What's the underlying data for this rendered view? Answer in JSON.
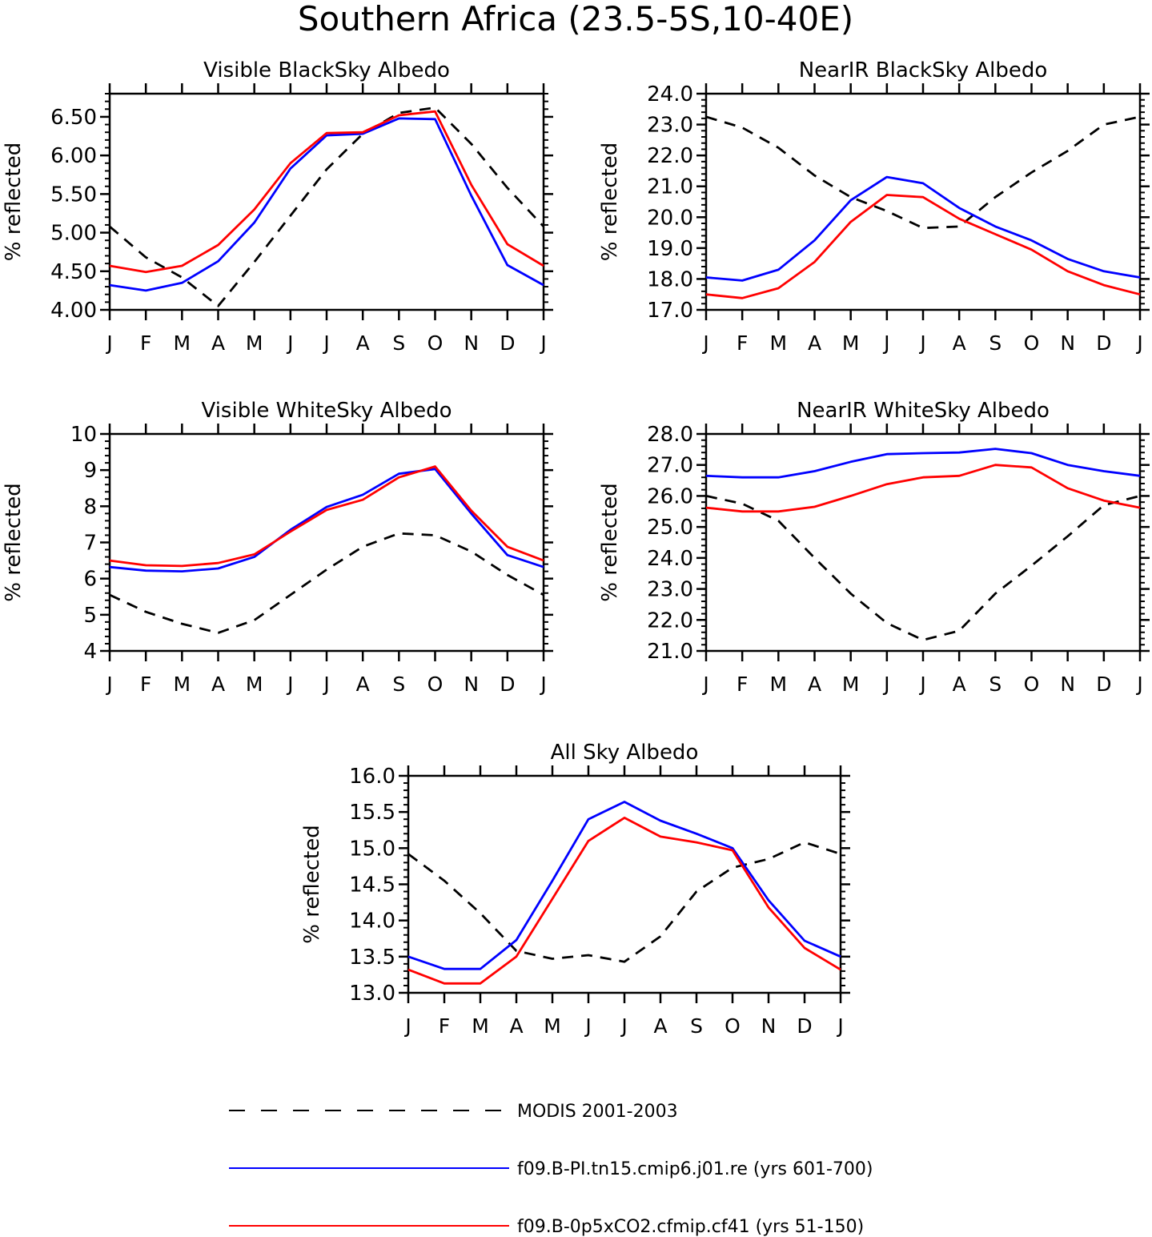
{
  "figure": {
    "title": "Southern Africa (23.5-5S,10-40E)"
  },
  "legend": [
    {
      "label": "MODIS 2001-2003",
      "color": "#000000",
      "style": "dashed"
    },
    {
      "label": "f09.B-PI.tn15.cmip6.j01.re (yrs 601-700)",
      "color": "#0000ff",
      "style": "solid"
    },
    {
      "label": "f09.B-0p5xCO2.cfmip.cf41 (yrs 51-150)",
      "color": "#ff0000",
      "style": "solid"
    }
  ],
  "chart_data": [
    {
      "type": "line",
      "title": "Visible BlackSky Albedo",
      "ylabel": "% reflected",
      "categories": [
        "J",
        "F",
        "M",
        "A",
        "M",
        "J",
        "J",
        "A",
        "S",
        "O",
        "N",
        "D",
        "J"
      ],
      "ylim": [
        4.0,
        6.8
      ],
      "yticks": [
        "4.00",
        "4.50",
        "5.00",
        "5.50",
        "6.00",
        "6.50"
      ],
      "series": [
        {
          "name": "MODIS 2001-2003",
          "color": "#000000",
          "style": "dashed",
          "values": [
            5.08,
            4.68,
            4.42,
            4.05,
            4.62,
            5.22,
            5.82,
            6.28,
            6.55,
            6.62,
            6.15,
            5.58,
            5.08
          ]
        },
        {
          "name": "f09.B-PI.tn15.cmip6.j01.re (yrs 601-700)",
          "color": "#0000ff",
          "style": "solid",
          "values": [
            4.32,
            4.25,
            4.35,
            4.63,
            5.13,
            5.83,
            6.26,
            6.28,
            6.48,
            6.47,
            5.48,
            4.58,
            4.32
          ]
        },
        {
          "name": "f09.B-0p5xCO2.cfmip.cf41 (yrs 51-150)",
          "color": "#ff0000",
          "style": "solid",
          "values": [
            4.57,
            4.49,
            4.57,
            4.84,
            5.3,
            5.9,
            6.29,
            6.3,
            6.52,
            6.57,
            5.62,
            4.85,
            4.57
          ]
        }
      ]
    },
    {
      "type": "line",
      "title": "NearIR BlackSky Albedo",
      "ylabel": "% reflected",
      "categories": [
        "J",
        "F",
        "M",
        "A",
        "M",
        "J",
        "J",
        "A",
        "S",
        "O",
        "N",
        "D",
        "J"
      ],
      "ylim": [
        17.0,
        24.0
      ],
      "yticks": [
        "17.0",
        "18.0",
        "19.0",
        "20.0",
        "21.0",
        "22.0",
        "23.0",
        "24.0"
      ],
      "series": [
        {
          "name": "MODIS 2001-2003",
          "color": "#000000",
          "style": "dashed",
          "values": [
            23.25,
            22.9,
            22.25,
            21.35,
            20.65,
            20.2,
            19.65,
            19.7,
            20.65,
            21.45,
            22.15,
            23.0,
            23.25
          ]
        },
        {
          "name": "f09.B-PI.tn15.cmip6.j01.re (yrs 601-700)",
          "color": "#0000ff",
          "style": "solid",
          "values": [
            18.05,
            17.95,
            18.3,
            19.25,
            20.55,
            21.3,
            21.1,
            20.3,
            19.7,
            19.25,
            18.65,
            18.25,
            18.05
          ]
        },
        {
          "name": "f09.B-0p5xCO2.cfmip.cf41 (yrs 51-150)",
          "color": "#ff0000",
          "style": "solid",
          "values": [
            17.5,
            17.38,
            17.7,
            18.55,
            19.85,
            20.72,
            20.65,
            19.95,
            19.45,
            18.95,
            18.25,
            17.8,
            17.5
          ]
        }
      ]
    },
    {
      "type": "line",
      "title": "Visible WhiteSky Albedo",
      "ylabel": "% reflected",
      "categories": [
        "J",
        "F",
        "M",
        "A",
        "M",
        "J",
        "J",
        "A",
        "S",
        "O",
        "N",
        "D",
        "J"
      ],
      "ylim": [
        4,
        10
      ],
      "yticks": [
        "4",
        "5",
        "6",
        "7",
        "8",
        "9",
        "10"
      ],
      "series": [
        {
          "name": "MODIS 2001-2003",
          "color": "#000000",
          "style": "dashed",
          "values": [
            5.55,
            5.08,
            4.75,
            4.5,
            4.85,
            5.55,
            6.25,
            6.88,
            7.25,
            7.2,
            6.75,
            6.1,
            5.55
          ]
        },
        {
          "name": "f09.B-PI.tn15.cmip6.j01.re (yrs 601-700)",
          "color": "#0000ff",
          "style": "solid",
          "values": [
            6.32,
            6.22,
            6.2,
            6.28,
            6.6,
            7.35,
            7.98,
            8.32,
            8.9,
            9.03,
            7.8,
            6.65,
            6.32
          ]
        },
        {
          "name": "f09.B-0p5xCO2.cfmip.cf41 (yrs 51-150)",
          "color": "#ff0000",
          "style": "solid",
          "values": [
            6.5,
            6.37,
            6.35,
            6.43,
            6.67,
            7.3,
            7.9,
            8.18,
            8.8,
            9.1,
            7.88,
            6.88,
            6.5
          ]
        }
      ]
    },
    {
      "type": "line",
      "title": "NearIR WhiteSky Albedo",
      "ylabel": "% reflected",
      "categories": [
        "J",
        "F",
        "M",
        "A",
        "M",
        "J",
        "J",
        "A",
        "S",
        "O",
        "N",
        "D",
        "J"
      ],
      "ylim": [
        21.0,
        28.0
      ],
      "yticks": [
        "21.0",
        "22.0",
        "23.0",
        "24.0",
        "25.0",
        "26.0",
        "27.0",
        "28.0"
      ],
      "series": [
        {
          "name": "MODIS 2001-2003",
          "color": "#000000",
          "style": "dashed",
          "values": [
            26.0,
            25.75,
            25.2,
            24.0,
            22.85,
            21.9,
            21.35,
            21.65,
            22.85,
            23.75,
            24.7,
            25.7,
            26.0
          ]
        },
        {
          "name": "f09.B-PI.tn15.cmip6.j01.re (yrs 601-700)",
          "color": "#0000ff",
          "style": "solid",
          "values": [
            26.65,
            26.6,
            26.6,
            26.8,
            27.1,
            27.35,
            27.38,
            27.4,
            27.52,
            27.38,
            27.0,
            26.8,
            26.65
          ]
        },
        {
          "name": "f09.B-0p5xCO2.cfmip.cf41 (yrs 51-150)",
          "color": "#ff0000",
          "style": "solid",
          "values": [
            25.62,
            25.5,
            25.5,
            25.65,
            26.0,
            26.38,
            26.6,
            26.65,
            27.0,
            26.92,
            26.25,
            25.85,
            25.62
          ]
        }
      ]
    },
    {
      "type": "line",
      "title": "All Sky Albedo",
      "ylabel": "% reflected",
      "categories": [
        "J",
        "F",
        "M",
        "A",
        "M",
        "J",
        "J",
        "A",
        "S",
        "O",
        "N",
        "D",
        "J"
      ],
      "ylim": [
        13.0,
        16.0
      ],
      "yticks": [
        "13.0",
        "13.5",
        "14.0",
        "14.5",
        "15.0",
        "15.5",
        "16.0"
      ],
      "series": [
        {
          "name": "MODIS 2001-2003",
          "color": "#000000",
          "style": "dashed",
          "values": [
            14.92,
            14.55,
            14.1,
            13.58,
            13.47,
            13.52,
            13.43,
            13.78,
            14.4,
            14.73,
            14.85,
            15.08,
            14.92
          ]
        },
        {
          "name": "f09.B-PI.tn15.cmip6.j01.re (yrs 601-700)",
          "color": "#0000ff",
          "style": "solid",
          "values": [
            13.5,
            13.33,
            13.33,
            13.73,
            14.55,
            15.4,
            15.64,
            15.38,
            15.2,
            15.0,
            14.28,
            13.72,
            13.5
          ]
        },
        {
          "name": "f09.B-0p5xCO2.cfmip.cf41 (yrs 51-150)",
          "color": "#ff0000",
          "style": "solid",
          "values": [
            13.32,
            13.13,
            13.13,
            13.5,
            14.3,
            15.1,
            15.42,
            15.16,
            15.08,
            14.97,
            14.18,
            13.62,
            13.32
          ]
        }
      ]
    }
  ]
}
